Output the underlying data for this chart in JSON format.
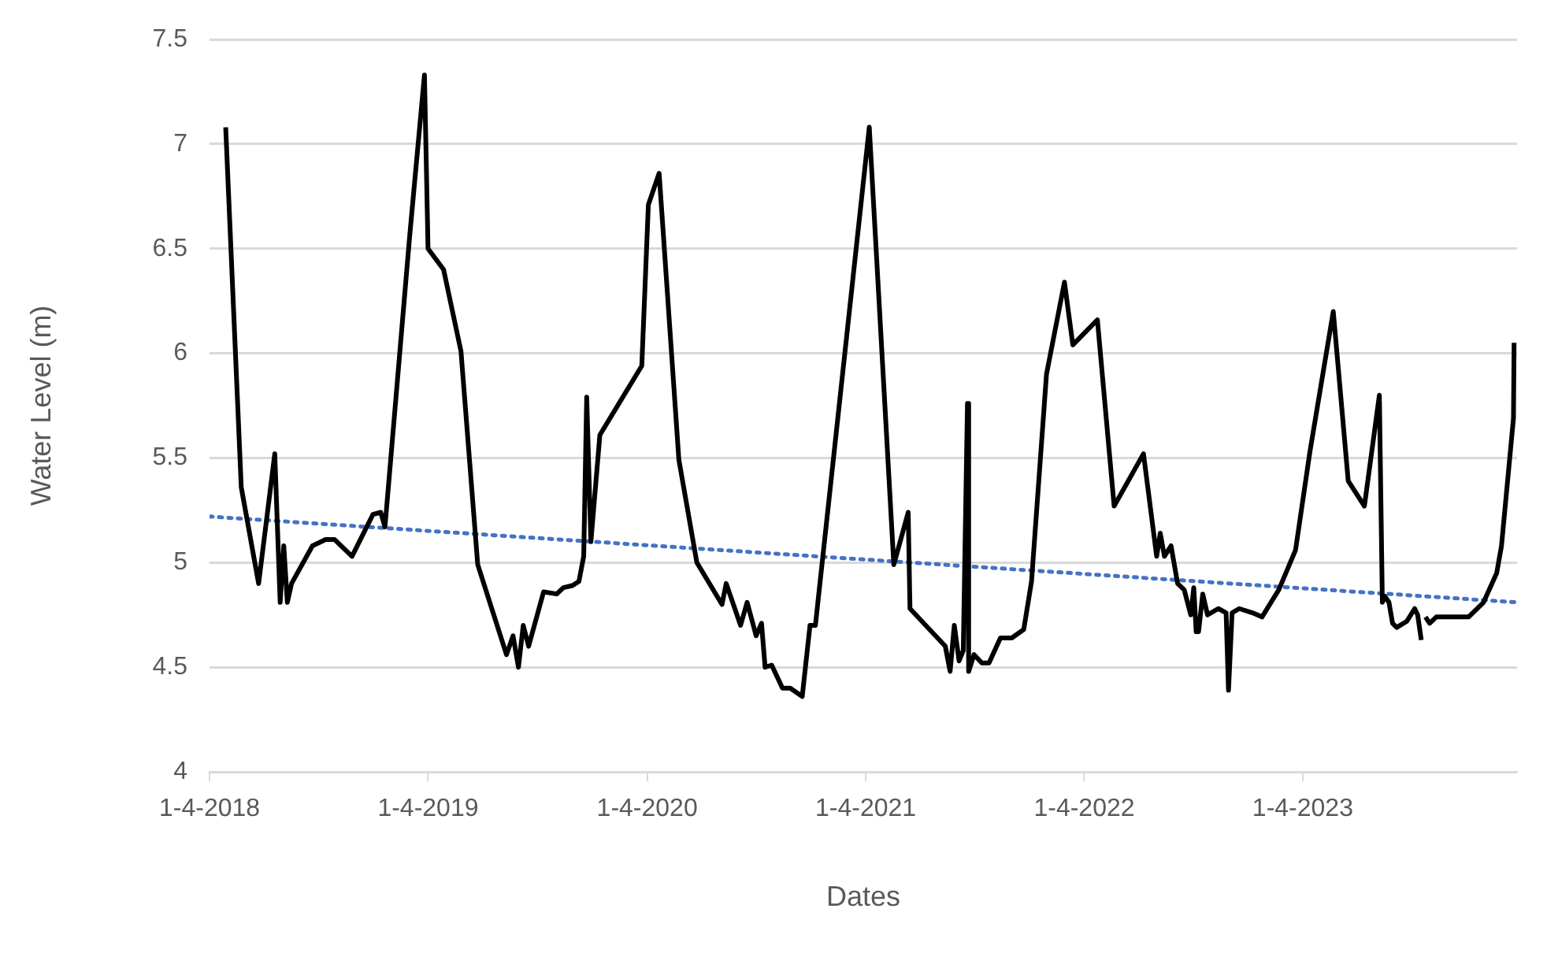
{
  "chart_data": {
    "type": "line",
    "xlabel": "Dates",
    "ylabel": "Water Level (m)",
    "xlim": [
      "2018-04-01",
      "2024-03-24"
    ],
    "xticks": [
      {
        "value": "2018-04-01",
        "label": "1-4-2018"
      },
      {
        "value": "2019-04-01",
        "label": "1-4-2019"
      },
      {
        "value": "2020-04-01",
        "label": "1-4-2020"
      },
      {
        "value": "2021-04-01",
        "label": "1-4-2021"
      },
      {
        "value": "2022-04-01",
        "label": "1-4-2022"
      },
      {
        "value": "2023-04-01",
        "label": "1-4-2023"
      }
    ],
    "ylim": [
      4,
      7.5
    ],
    "yticks": [
      4,
      4.5,
      5,
      5.5,
      6,
      6.5,
      7,
      7.5
    ],
    "grid": "y",
    "legend": false,
    "marker": "none",
    "series": [
      {
        "color": "#000000",
        "line_style": "solid",
        "x": [
          "2018-04-28",
          "2018-05-24",
          "2018-06-22",
          "2018-07-19",
          "2018-07-28",
          "2018-08-03",
          "2018-08-09",
          "2018-08-16",
          "2018-09-20",
          "2018-10-12",
          "2018-10-27",
          "2018-11-25",
          "2018-12-30",
          "2019-01-12",
          "2019-01-19",
          "2019-01-25",
          "2019-03-01",
          "2019-03-26",
          "2019-04-01",
          "2019-04-27",
          "2019-05-26",
          "2019-06-23",
          "2019-08-10",
          "2019-08-21",
          "2019-08-30",
          "2019-09-07",
          "2019-09-16",
          "2019-10-11",
          "2019-11-02",
          "2019-11-13",
          "2019-11-28",
          "2019-12-09",
          "2019-12-17",
          "2019-12-22",
          "2019-12-29",
          "2020-01-13",
          "2020-03-23",
          "2020-04-03",
          "2020-04-21",
          "2020-05-24",
          "2020-06-23",
          "2020-08-04",
          "2020-08-11",
          "2020-09-04",
          "2020-09-15",
          "2020-09-30",
          "2020-10-09",
          "2020-10-15",
          "2020-10-26",
          "2020-11-13",
          "2020-11-26",
          "2020-12-16",
          "2020-12-29",
          "2021-01-07",
          "2021-04-07",
          "2021-05-18",
          "2021-06-11",
          "2021-06-14",
          "2021-08-12",
          "2021-08-20",
          "2021-08-27",
          "2021-09-04",
          "2021-09-11",
          "2021-09-18",
          "2021-09-20",
          "2021-09-29",
          "2021-10-12",
          "2021-10-24",
          "2021-11-12",
          "2021-12-01",
          "2021-12-21",
          "2022-01-03",
          "2022-01-28",
          "2022-02-27",
          "2022-03-13",
          "2022-04-23",
          "2022-05-21",
          "2022-07-09",
          "2022-07-31",
          "2022-08-06",
          "2022-08-13",
          "2022-08-24",
          "2022-09-04",
          "2022-09-15",
          "2022-09-26",
          "2022-10-01",
          "2022-10-05",
          "2022-10-09",
          "2022-10-16",
          "2022-10-24",
          "2022-11-11",
          "2022-11-24",
          "2022-11-28",
          "2022-12-04",
          "2022-12-16",
          "2023-01-07",
          "2023-01-23",
          "2023-02-20",
          "2023-03-20",
          "2023-04-13",
          "2023-05-22",
          "2023-06-16",
          "2023-07-13",
          "2023-08-07",
          "2023-08-12",
          "2023-08-16",
          "2023-08-23",
          "2023-08-29",
          "2023-09-05",
          "2023-09-22",
          "2023-10-05",
          "2023-10-10",
          "2023-10-16",
          "2023-10-18",
          "2023-10-23",
          "2023-10-30",
          "2023-11-10",
          "2023-11-27",
          "2024-01-03",
          "2024-01-28",
          "2024-02-19",
          "2024-02-27",
          "2024-03-18",
          "2024-03-19"
        ],
        "values": [
          7.08,
          5.36,
          4.9,
          5.52,
          4.81,
          5.08,
          4.81,
          4.9,
          5.08,
          5.11,
          5.11,
          5.03,
          5.23,
          5.24,
          5.17,
          5.37,
          6.55,
          7.33,
          6.5,
          6.4,
          6.01,
          4.99,
          4.56,
          4.65,
          4.5,
          4.7,
          4.6,
          4.86,
          4.85,
          4.88,
          4.89,
          4.91,
          5.03,
          5.79,
          5.1,
          5.61,
          5.94,
          6.71,
          6.86,
          5.49,
          5.0,
          4.8,
          4.9,
          4.7,
          4.81,
          4.65,
          4.71,
          4.5,
          4.51,
          4.4,
          4.4,
          4.36,
          4.7,
          4.7,
          7.08,
          4.99,
          5.24,
          4.78,
          4.6,
          4.48,
          4.7,
          4.53,
          4.58,
          5.76,
          4.48,
          4.56,
          4.52,
          4.52,
          4.64,
          4.64,
          4.68,
          4.91,
          5.9,
          6.34,
          6.04,
          6.16,
          5.27,
          5.52,
          5.03,
          5.14,
          5.03,
          5.08,
          4.9,
          4.87,
          4.75,
          4.88,
          4.67,
          4.67,
          4.85,
          4.75,
          4.78,
          4.76,
          4.39,
          4.76,
          4.78,
          4.76,
          4.74,
          4.87,
          5.06,
          5.53,
          6.2,
          5.39,
          5.27,
          5.8,
          4.81,
          4.84,
          4.81,
          4.71,
          4.69,
          4.72,
          4.78,
          4.75,
          4.63,
          null,
          4.74,
          4.71,
          4.74,
          4.74,
          4.74,
          4.81,
          4.95,
          5.08,
          5.69,
          6.05
        ]
      },
      {
        "type": "line",
        "color": "#4472c4",
        "line_style": "dotted",
        "x": [
          "2018-04-01",
          "2024-03-24"
        ],
        "values": [
          5.22,
          4.81
        ]
      }
    ]
  }
}
